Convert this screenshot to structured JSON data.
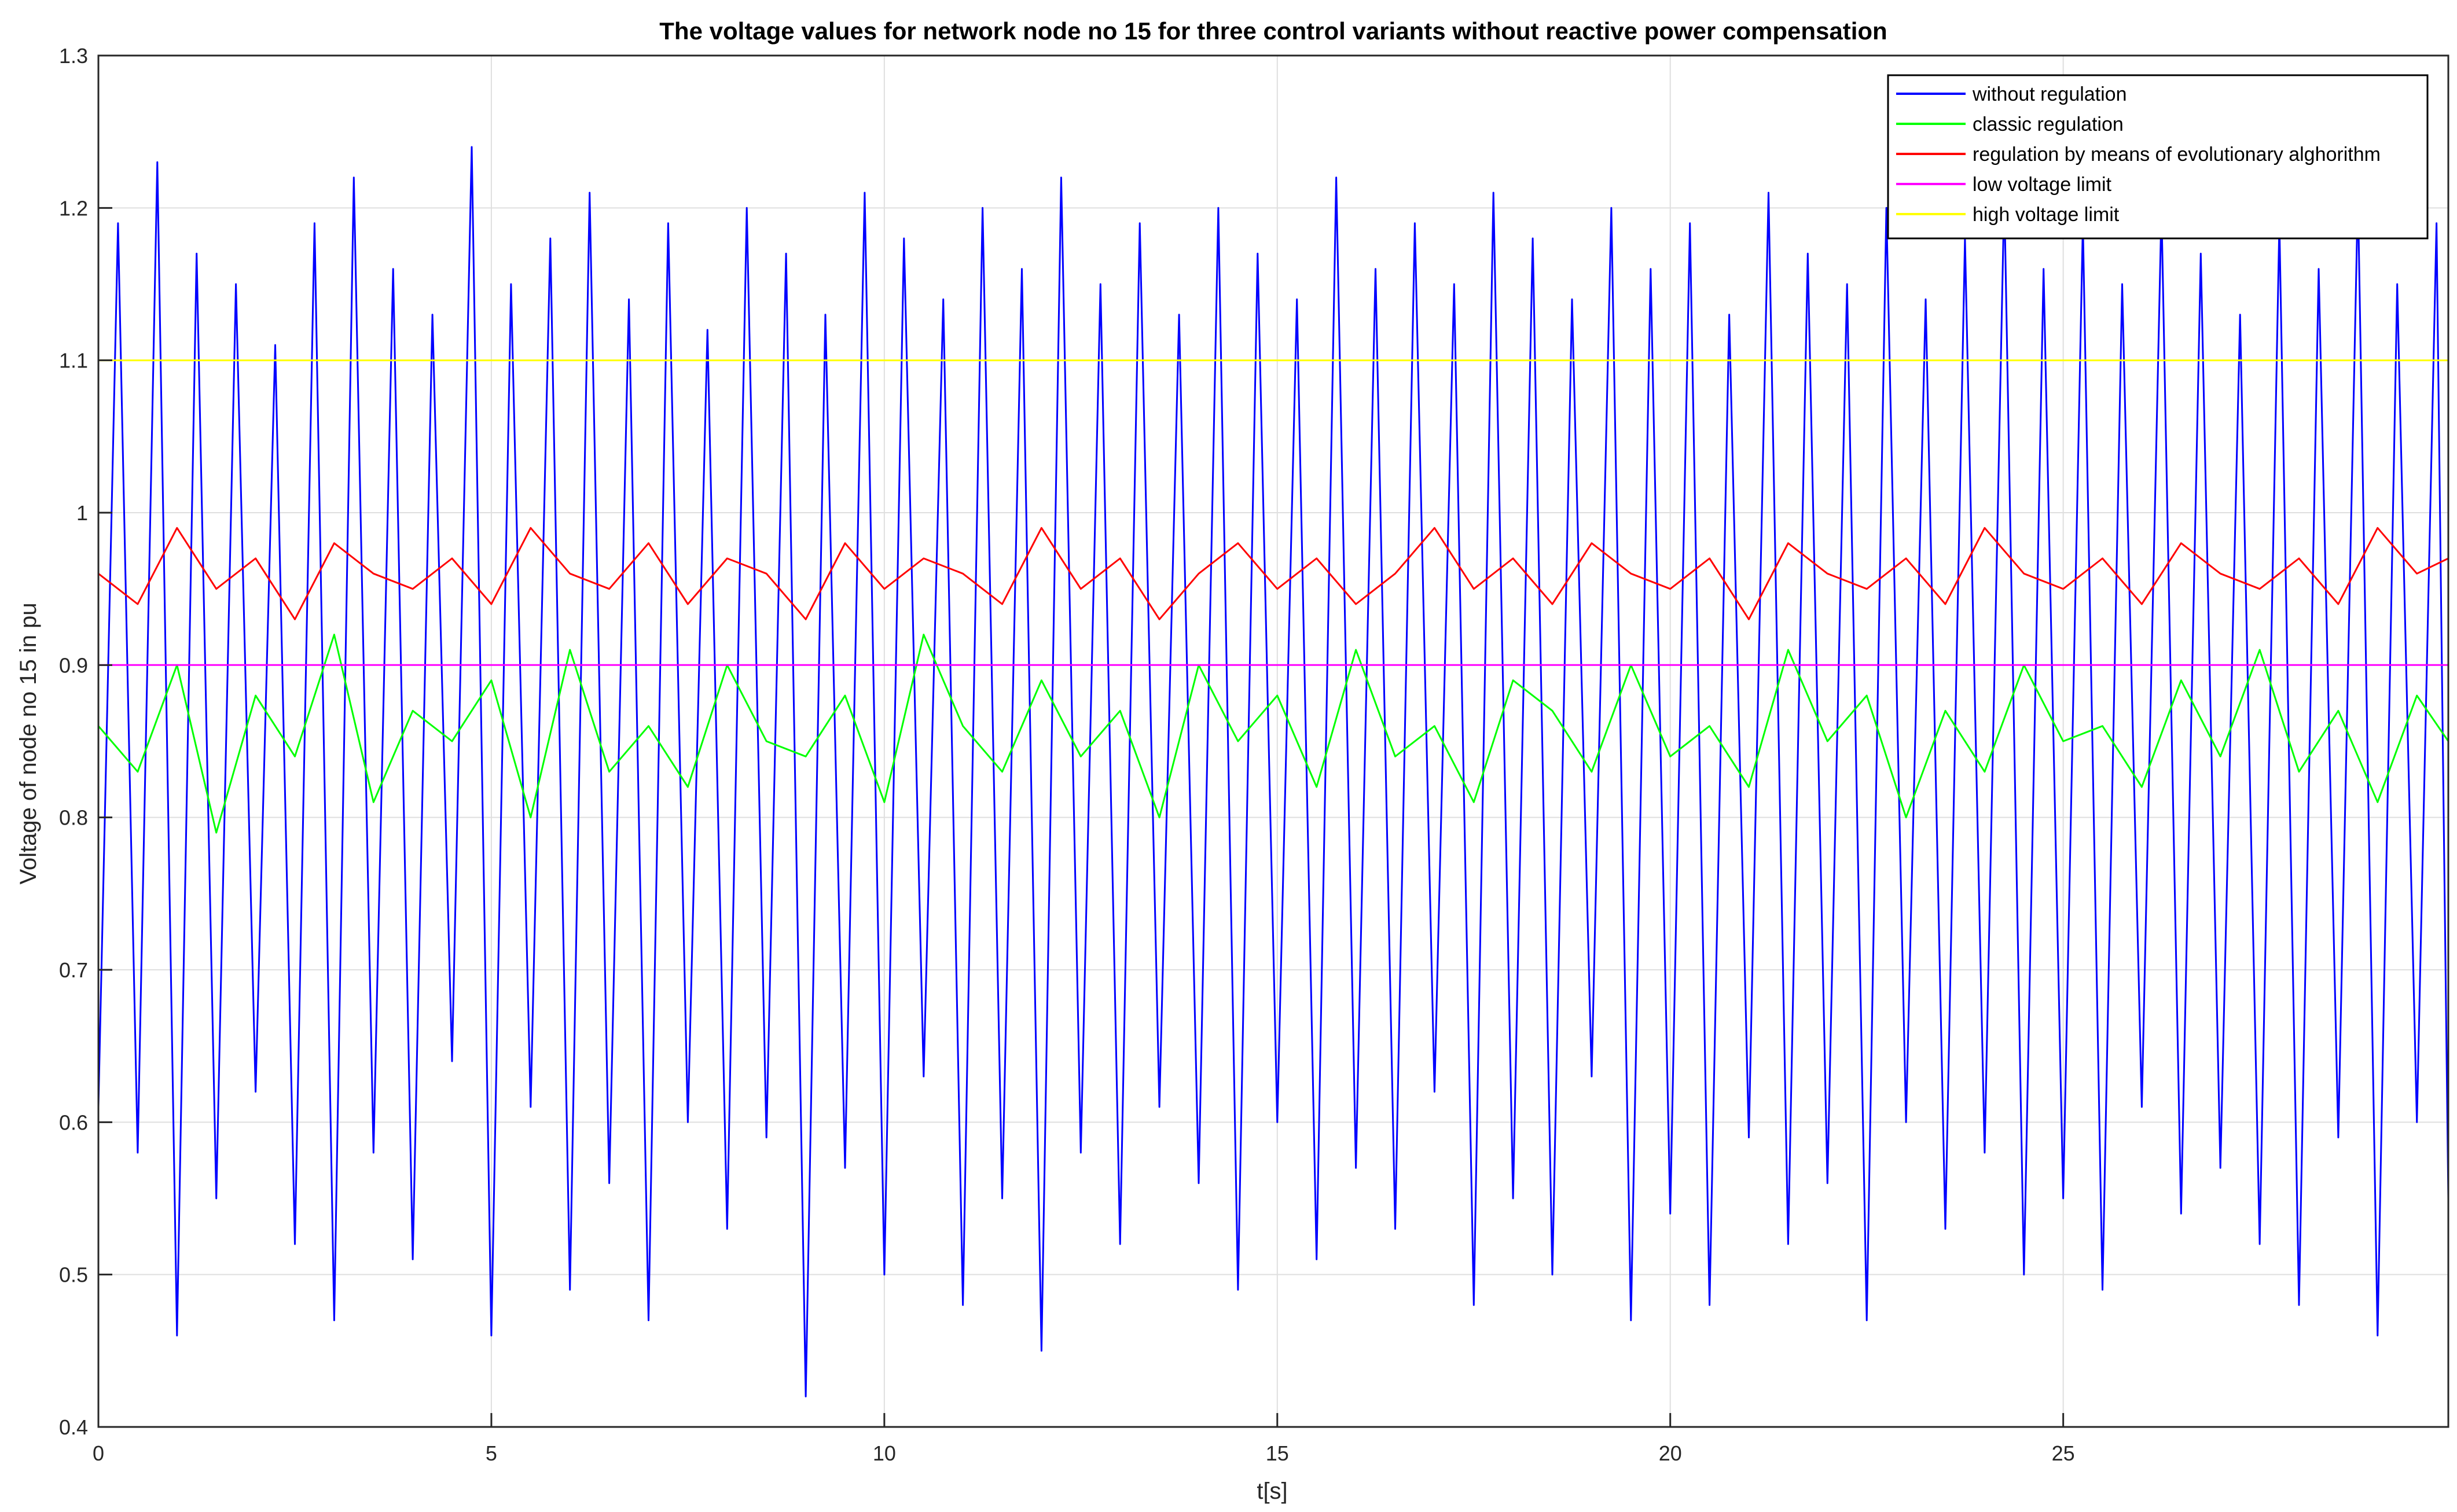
{
  "chart_data": {
    "type": "line",
    "title": "The voltage values for network node no 15 for three control variants without reactive power compensation",
    "xlabel": "t[s]",
    "ylabel": "Voltage of node no 15 in pu",
    "xlim": [
      0,
      29.9
    ],
    "ylim": [
      0.4,
      1.3
    ],
    "xticks": [
      0,
      5,
      10,
      15,
      20,
      25
    ],
    "xtick_labels": [
      "0",
      "5",
      "10",
      "15",
      "20",
      "25"
    ],
    "yticks": [
      0.4,
      0.5,
      0.6,
      0.7,
      0.8,
      0.9,
      1.0,
      1.1,
      1.2,
      1.3
    ],
    "ytick_labels": [
      "0.4",
      "0.5",
      "0.6",
      "0.7",
      "0.8",
      "0.9",
      "1",
      "1.1",
      "1.2",
      "1.3"
    ],
    "grid": true,
    "legend_position": "top-right",
    "colors": {
      "without_regulation": "#0000ff",
      "classic_regulation": "#00ff00",
      "evolutionary_regulation": "#ff0000",
      "low_limit": "#ff00ff",
      "high_limit": "#ffff00"
    },
    "series": [
      {
        "name": "without regulation",
        "color": "#0000ff",
        "x": [
          0.0,
          0.25,
          0.5,
          0.75,
          1.0,
          1.25,
          1.5,
          1.75,
          2.0,
          2.25,
          2.5,
          2.75,
          3.0,
          3.25,
          3.5,
          3.75,
          4.0,
          4.25,
          4.5,
          4.75,
          5.0,
          5.25,
          5.5,
          5.75,
          6.0,
          6.25,
          6.5,
          6.75,
          7.0,
          7.25,
          7.5,
          7.75,
          8.0,
          8.25,
          8.5,
          8.75,
          9.0,
          9.25,
          9.5,
          9.75,
          10.0,
          10.25,
          10.5,
          10.75,
          11.0,
          11.25,
          11.5,
          11.75,
          12.0,
          12.25,
          12.5,
          12.75,
          13.0,
          13.25,
          13.5,
          13.75,
          14.0,
          14.25,
          14.5,
          14.75,
          15.0,
          15.25,
          15.5,
          15.75,
          16.0,
          16.25,
          16.5,
          16.75,
          17.0,
          17.25,
          17.5,
          17.75,
          18.0,
          18.25,
          18.5,
          18.75,
          19.0,
          19.25,
          19.5,
          19.75,
          20.0,
          20.25,
          20.5,
          20.75,
          21.0,
          21.25,
          21.5,
          21.75,
          22.0,
          22.25,
          22.5,
          22.75,
          23.0,
          23.25,
          23.5,
          23.75,
          24.0,
          24.25,
          24.5,
          24.75,
          25.0,
          25.25,
          25.5,
          25.75,
          26.0,
          26.25,
          26.5,
          26.75,
          27.0,
          27.25,
          27.5,
          27.75,
          28.0,
          28.25,
          28.5,
          28.75,
          29.0,
          29.25,
          29.5,
          29.75,
          29.9
        ],
        "values": [
          0.61,
          1.19,
          0.58,
          1.23,
          0.46,
          1.17,
          0.55,
          1.15,
          0.62,
          1.11,
          0.52,
          1.19,
          0.47,
          1.22,
          0.58,
          1.16,
          0.51,
          1.13,
          0.64,
          1.24,
          0.46,
          1.15,
          0.61,
          1.18,
          0.49,
          1.21,
          0.56,
          1.14,
          0.47,
          1.19,
          0.6,
          1.12,
          0.53,
          1.2,
          0.59,
          1.17,
          0.42,
          1.13,
          0.57,
          1.21,
          0.5,
          1.18,
          0.63,
          1.14,
          0.48,
          1.2,
          0.55,
          1.16,
          0.45,
          1.22,
          0.58,
          1.15,
          0.52,
          1.19,
          0.61,
          1.13,
          0.56,
          1.2,
          0.49,
          1.17,
          0.6,
          1.14,
          0.51,
          1.22,
          0.57,
          1.16,
          0.53,
          1.19,
          0.62,
          1.15,
          0.48,
          1.21,
          0.55,
          1.18,
          0.5,
          1.14,
          0.63,
          1.2,
          0.47,
          1.16,
          0.54,
          1.19,
          0.48,
          1.13,
          0.59,
          1.21,
          0.52,
          1.17,
          0.56,
          1.15,
          0.47,
          1.2,
          0.6,
          1.14,
          0.53,
          1.18,
          0.58,
          1.21,
          0.5,
          1.16,
          0.55,
          1.19,
          0.49,
          1.15,
          0.61,
          1.2,
          0.54,
          1.17,
          0.57,
          1.13,
          0.52,
          1.19,
          0.48,
          1.16,
          0.59,
          1.21,
          0.46,
          1.15,
          0.6,
          1.19,
          0.55
        ]
      },
      {
        "name": "classic regulation",
        "color": "#00ff00",
        "x": [
          0.0,
          0.5,
          1.0,
          1.5,
          2.0,
          2.5,
          3.0,
          3.5,
          4.0,
          4.5,
          5.0,
          5.5,
          6.0,
          6.5,
          7.0,
          7.5,
          8.0,
          8.5,
          9.0,
          9.5,
          10.0,
          10.5,
          11.0,
          11.5,
          12.0,
          12.5,
          13.0,
          13.5,
          14.0,
          14.5,
          15.0,
          15.5,
          16.0,
          16.5,
          17.0,
          17.5,
          18.0,
          18.5,
          19.0,
          19.5,
          20.0,
          20.5,
          21.0,
          21.5,
          22.0,
          22.5,
          23.0,
          23.5,
          24.0,
          24.5,
          25.0,
          25.5,
          26.0,
          26.5,
          27.0,
          27.5,
          28.0,
          28.5,
          29.0,
          29.5,
          29.9
        ],
        "values": [
          0.86,
          0.83,
          0.9,
          0.79,
          0.88,
          0.84,
          0.92,
          0.81,
          0.87,
          0.85,
          0.89,
          0.8,
          0.91,
          0.83,
          0.86,
          0.82,
          0.9,
          0.85,
          0.84,
          0.88,
          0.81,
          0.92,
          0.86,
          0.83,
          0.89,
          0.84,
          0.87,
          0.8,
          0.9,
          0.85,
          0.88,
          0.82,
          0.91,
          0.84,
          0.86,
          0.81,
          0.89,
          0.87,
          0.83,
          0.9,
          0.84,
          0.86,
          0.82,
          0.91,
          0.85,
          0.88,
          0.8,
          0.87,
          0.83,
          0.9,
          0.85,
          0.86,
          0.82,
          0.89,
          0.84,
          0.91,
          0.83,
          0.87,
          0.81,
          0.88,
          0.85
        ]
      },
      {
        "name": "regulation by means of evolutionary alghorithm",
        "color": "#ff0000",
        "x": [
          0.0,
          0.5,
          1.0,
          1.5,
          2.0,
          2.5,
          3.0,
          3.5,
          4.0,
          4.5,
          5.0,
          5.5,
          6.0,
          6.5,
          7.0,
          7.5,
          8.0,
          8.5,
          9.0,
          9.5,
          10.0,
          10.5,
          11.0,
          11.5,
          12.0,
          12.5,
          13.0,
          13.5,
          14.0,
          14.5,
          15.0,
          15.5,
          16.0,
          16.5,
          17.0,
          17.5,
          18.0,
          18.5,
          19.0,
          19.5,
          20.0,
          20.5,
          21.0,
          21.5,
          22.0,
          22.5,
          23.0,
          23.5,
          24.0,
          24.5,
          25.0,
          25.5,
          26.0,
          26.5,
          27.0,
          27.5,
          28.0,
          28.5,
          29.0,
          29.5,
          29.9
        ],
        "values": [
          0.96,
          0.94,
          0.99,
          0.95,
          0.97,
          0.93,
          0.98,
          0.96,
          0.95,
          0.97,
          0.94,
          0.99,
          0.96,
          0.95,
          0.98,
          0.94,
          0.97,
          0.96,
          0.93,
          0.98,
          0.95,
          0.97,
          0.96,
          0.94,
          0.99,
          0.95,
          0.97,
          0.93,
          0.96,
          0.98,
          0.95,
          0.97,
          0.94,
          0.96,
          0.99,
          0.95,
          0.97,
          0.94,
          0.98,
          0.96,
          0.95,
          0.97,
          0.93,
          0.98,
          0.96,
          0.95,
          0.97,
          0.94,
          0.99,
          0.96,
          0.95,
          0.97,
          0.94,
          0.98,
          0.96,
          0.95,
          0.97,
          0.94,
          0.99,
          0.96,
          0.97
        ]
      },
      {
        "name": "low voltage limit",
        "color": "#ff00ff",
        "x": [
          0,
          29.9
        ],
        "values": [
          0.9,
          0.9
        ]
      },
      {
        "name": "high voltage limit",
        "color": "#ffff00",
        "x": [
          0,
          29.9
        ],
        "values": [
          1.1,
          1.1
        ]
      }
    ]
  }
}
